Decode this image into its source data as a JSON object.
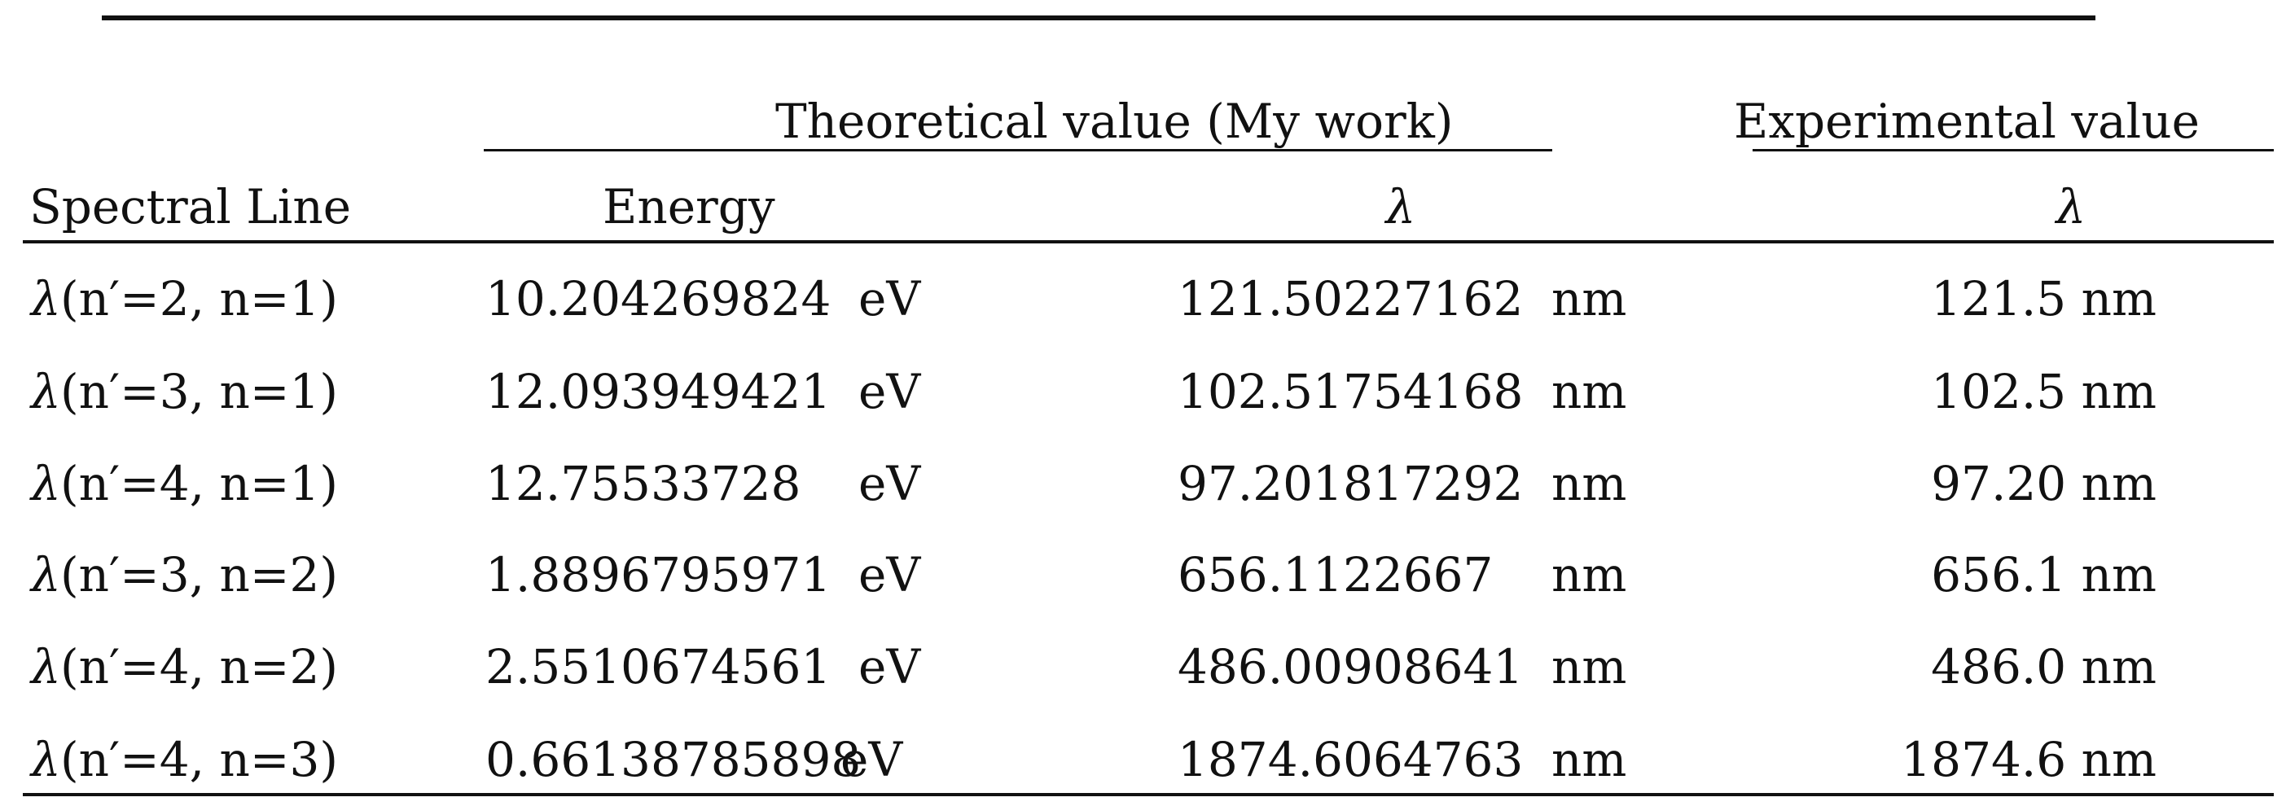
{
  "table": {
    "group_headers": {
      "theoretical": "Theoretical value (My work)",
      "experimental": "Experimental value"
    },
    "column_headers": {
      "spectral_line": "Spectral Line",
      "energy": "Energy",
      "theo_lambda": "λ",
      "exp_lambda": "λ"
    },
    "rows": [
      {
        "lambda": "λ",
        "transition": "(n′=2, n=1)",
        "energy": "10.204269824",
        "energy_unit": "eV",
        "wavelength": "121.50227162",
        "wavelength_unit": "nm",
        "experimental": "121.5 nm"
      },
      {
        "lambda": "λ",
        "transition": "(n′=3, n=1)",
        "energy": "12.093949421",
        "energy_unit": "eV",
        "wavelength": "102.51754168",
        "wavelength_unit": "nm",
        "experimental": "102.5 nm"
      },
      {
        "lambda": "λ",
        "transition": "(n′=4, n=1)",
        "energy": "12.75533728",
        "energy_unit": "eV",
        "wavelength": "97.201817292",
        "wavelength_unit": "nm",
        "experimental": "97.20 nm"
      },
      {
        "lambda": "λ",
        "transition": "(n′=3, n=2)",
        "energy": "1.8896795971",
        "energy_unit": "eV",
        "wavelength": "656.1122667",
        "wavelength_unit": "nm",
        "experimental": "656.1 nm"
      },
      {
        "lambda": "λ",
        "transition": "(n′=4, n=2)",
        "energy": "2.5510674561",
        "energy_unit": "eV",
        "wavelength": "486.00908641",
        "wavelength_unit": "nm",
        "experimental": "486.0 nm"
      },
      {
        "lambda": "λ",
        "transition": "(n′=4, n=3)",
        "energy": "0.66138785898",
        "energy_unit": "eV",
        "wavelength": "1874.6064763",
        "wavelength_unit": "nm",
        "experimental": "1874.6 nm"
      }
    ]
  }
}
